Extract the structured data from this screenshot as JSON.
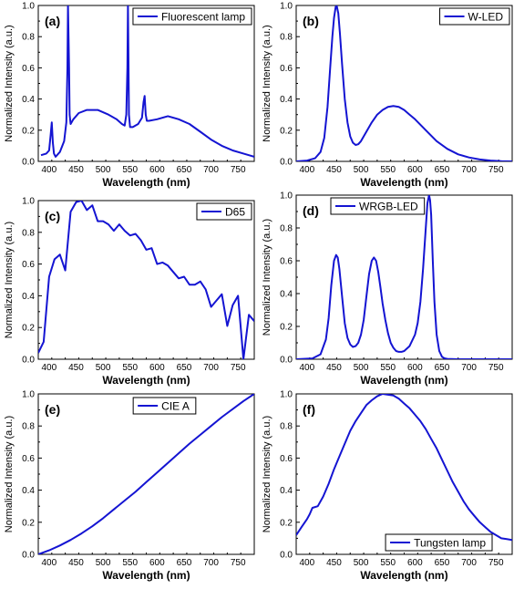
{
  "chart_data": [
    {
      "type": "line",
      "panel_label": "(a)",
      "legend": "Fluorescent lamp",
      "legend_position": "top-right",
      "xlabel": "Wavelength (nm)",
      "ylabel": "Normalized Intensity (a.u.)",
      "xlim": [
        380,
        780
      ],
      "ylim": [
        0,
        1.0
      ],
      "xticks": [
        400,
        450,
        500,
        550,
        600,
        650,
        700,
        750
      ],
      "yticks": [
        0.0,
        0.2,
        0.4,
        0.6,
        0.8,
        1.0
      ],
      "color": "#1414d2",
      "x": [
        385,
        395,
        400,
        403,
        405,
        407,
        409,
        412,
        420,
        428,
        432,
        434,
        435,
        436,
        437,
        438,
        440,
        445,
        455,
        470,
        490,
        510,
        525,
        535,
        540,
        543,
        545,
        546,
        547,
        548,
        550,
        555,
        565,
        572,
        575,
        577,
        579,
        581,
        585,
        600,
        620,
        640,
        660,
        680,
        700,
        720,
        740,
        760,
        780
      ],
      "y": [
        0.04,
        0.05,
        0.07,
        0.17,
        0.25,
        0.12,
        0.05,
        0.03,
        0.06,
        0.13,
        0.25,
        0.6,
        1.0,
        0.8,
        0.6,
        0.3,
        0.24,
        0.27,
        0.31,
        0.33,
        0.33,
        0.3,
        0.27,
        0.24,
        0.23,
        0.3,
        0.6,
        1.0,
        0.7,
        0.3,
        0.22,
        0.22,
        0.24,
        0.28,
        0.38,
        0.42,
        0.3,
        0.26,
        0.26,
        0.27,
        0.29,
        0.27,
        0.24,
        0.19,
        0.14,
        0.1,
        0.07,
        0.05,
        0.03
      ]
    },
    {
      "type": "line",
      "panel_label": "(b)",
      "legend": "W-LED",
      "legend_position": "top-right",
      "xlabel": "Wavelength (nm)",
      "ylabel": "Normalized Intensity (a.u.)",
      "xlim": [
        380,
        780
      ],
      "ylim": [
        0,
        1.0
      ],
      "xticks": [
        400,
        450,
        500,
        550,
        600,
        650,
        700,
        750
      ],
      "yticks": [
        0.0,
        0.2,
        0.4,
        0.6,
        0.8,
        1.0
      ],
      "color": "#1414d2",
      "x": [
        380,
        400,
        415,
        425,
        432,
        438,
        443,
        447,
        450,
        453,
        455,
        458,
        461,
        465,
        470,
        475,
        480,
        485,
        490,
        495,
        500,
        510,
        520,
        530,
        540,
        550,
        560,
        570,
        580,
        590,
        600,
        620,
        640,
        660,
        680,
        700,
        720,
        740,
        760,
        780
      ],
      "y": [
        0.0,
        0.005,
        0.02,
        0.06,
        0.15,
        0.35,
        0.6,
        0.8,
        0.92,
        0.99,
        1.0,
        0.95,
        0.82,
        0.62,
        0.4,
        0.25,
        0.16,
        0.12,
        0.105,
        0.11,
        0.13,
        0.19,
        0.25,
        0.3,
        0.33,
        0.35,
        0.355,
        0.35,
        0.33,
        0.3,
        0.27,
        0.2,
        0.13,
        0.08,
        0.045,
        0.025,
        0.012,
        0.005,
        0.002,
        0.0
      ]
    },
    {
      "type": "line",
      "panel_label": "(c)",
      "legend": "D65",
      "legend_position": "top-right",
      "xlabel": "Wavelength (nm)",
      "ylabel": "Normalized Intensity (a.u.)",
      "xlim": [
        380,
        780
      ],
      "ylim": [
        0,
        1.0
      ],
      "xticks": [
        400,
        450,
        500,
        550,
        600,
        650,
        700,
        750
      ],
      "yticks": [
        0.0,
        0.2,
        0.4,
        0.6,
        0.8,
        1.0
      ],
      "color": "#1414d2",
      "x": [
        380,
        390,
        400,
        410,
        420,
        430,
        440,
        450,
        460,
        470,
        480,
        490,
        500,
        510,
        520,
        530,
        540,
        550,
        560,
        570,
        580,
        590,
        600,
        610,
        620,
        630,
        640,
        650,
        660,
        670,
        680,
        690,
        700,
        710,
        720,
        730,
        740,
        750,
        760,
        770,
        780
      ],
      "y": [
        0.04,
        0.11,
        0.52,
        0.63,
        0.66,
        0.56,
        0.93,
        0.99,
        1.0,
        0.94,
        0.97,
        0.87,
        0.87,
        0.85,
        0.81,
        0.85,
        0.81,
        0.78,
        0.79,
        0.75,
        0.69,
        0.7,
        0.6,
        0.61,
        0.59,
        0.55,
        0.51,
        0.52,
        0.47,
        0.47,
        0.49,
        0.44,
        0.33,
        0.37,
        0.41,
        0.21,
        0.34,
        0.4,
        0.0,
        0.28,
        0.24
      ]
    },
    {
      "type": "line",
      "panel_label": "(d)",
      "legend": "WRGB-LED",
      "legend_position": "top-left",
      "xlabel": "Wavelength (nm)",
      "ylabel": "Normalized Intensity (a.u.)",
      "xlim": [
        380,
        780
      ],
      "ylim": [
        0,
        1.0
      ],
      "xticks": [
        400,
        450,
        500,
        550,
        600,
        650,
        700,
        750
      ],
      "yticks": [
        0.0,
        0.2,
        0.4,
        0.6,
        0.8,
        1.0
      ],
      "color": "#1414d2",
      "x": [
        380,
        410,
        425,
        435,
        440,
        445,
        450,
        454,
        457,
        460,
        465,
        470,
        475,
        480,
        485,
        490,
        495,
        500,
        505,
        510,
        515,
        520,
        524,
        528,
        532,
        536,
        540,
        545,
        550,
        555,
        560,
        565,
        570,
        575,
        580,
        590,
        600,
        605,
        610,
        615,
        620,
        623,
        626,
        628,
        630,
        633,
        636,
        640,
        645,
        650,
        655,
        660,
        680,
        720,
        780
      ],
      "y": [
        0.0,
        0.005,
        0.03,
        0.12,
        0.25,
        0.45,
        0.6,
        0.635,
        0.62,
        0.55,
        0.38,
        0.22,
        0.13,
        0.09,
        0.075,
        0.08,
        0.1,
        0.15,
        0.24,
        0.38,
        0.52,
        0.6,
        0.62,
        0.6,
        0.53,
        0.44,
        0.34,
        0.24,
        0.16,
        0.1,
        0.07,
        0.05,
        0.045,
        0.045,
        0.05,
        0.08,
        0.15,
        0.22,
        0.35,
        0.55,
        0.8,
        0.95,
        1.0,
        0.97,
        0.88,
        0.6,
        0.35,
        0.15,
        0.05,
        0.015,
        0.005,
        0.002,
        0.0,
        0.0,
        0.0
      ]
    },
    {
      "type": "line",
      "panel_label": "(e)",
      "legend": "CIE A",
      "legend_position": "top-center",
      "xlabel": "Wavelength (nm)",
      "ylabel": "Normalized Intensity (a.u.)",
      "xlim": [
        380,
        780
      ],
      "ylim": [
        0,
        1.0
      ],
      "xticks": [
        400,
        450,
        500,
        550,
        600,
        650,
        700,
        750
      ],
      "yticks": [
        0.0,
        0.2,
        0.4,
        0.6,
        0.8,
        1.0
      ],
      "color": "#1414d2",
      "x": [
        380,
        400,
        420,
        440,
        460,
        480,
        500,
        520,
        540,
        560,
        580,
        600,
        620,
        640,
        660,
        680,
        700,
        720,
        740,
        760,
        780
      ],
      "y": [
        0.0,
        0.025,
        0.055,
        0.09,
        0.13,
        0.175,
        0.225,
        0.28,
        0.335,
        0.39,
        0.45,
        0.51,
        0.57,
        0.63,
        0.69,
        0.745,
        0.8,
        0.855,
        0.905,
        0.955,
        1.0
      ]
    },
    {
      "type": "line",
      "panel_label": "(f)",
      "legend": "Tungsten lamp",
      "legend_position": "bottom-right",
      "xlabel": "Wavelength (nm)",
      "ylabel": "Normalized Intensity (a.u.)",
      "xlim": [
        380,
        780
      ],
      "ylim": [
        0,
        1.0
      ],
      "xticks": [
        400,
        450,
        500,
        550,
        600,
        650,
        700,
        750
      ],
      "yticks": [
        0.0,
        0.2,
        0.4,
        0.6,
        0.8,
        1.0
      ],
      "color": "#1414d2",
      "x": [
        380,
        390,
        400,
        405,
        410,
        420,
        430,
        440,
        450,
        460,
        470,
        480,
        490,
        500,
        510,
        520,
        530,
        540,
        550,
        560,
        570,
        580,
        590,
        600,
        610,
        620,
        630,
        640,
        650,
        660,
        670,
        680,
        690,
        700,
        710,
        720,
        730,
        740,
        750,
        760,
        770,
        780
      ],
      "y": [
        0.12,
        0.17,
        0.22,
        0.25,
        0.29,
        0.3,
        0.36,
        0.44,
        0.53,
        0.61,
        0.69,
        0.77,
        0.83,
        0.88,
        0.93,
        0.96,
        0.985,
        1.0,
        0.995,
        0.99,
        0.97,
        0.94,
        0.91,
        0.87,
        0.83,
        0.78,
        0.72,
        0.66,
        0.59,
        0.52,
        0.45,
        0.39,
        0.33,
        0.28,
        0.24,
        0.2,
        0.17,
        0.14,
        0.12,
        0.1,
        0.095,
        0.09
      ]
    }
  ]
}
